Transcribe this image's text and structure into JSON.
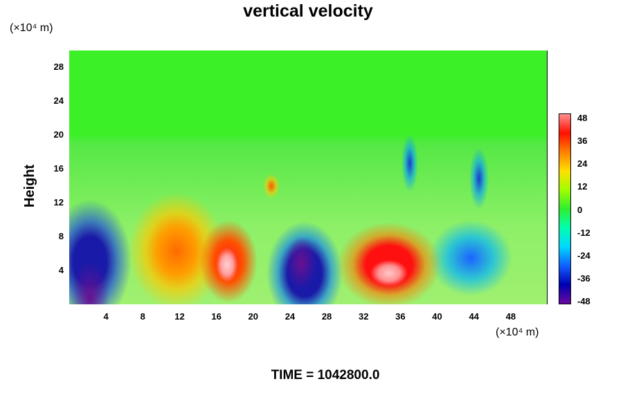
{
  "chart_data": {
    "type": "heatmap",
    "title": "vertical velocity",
    "xlabel": "",
    "ylabel": "Height",
    "x_unit": "(×10⁴ m)",
    "y_unit": "(×10⁴ m)",
    "x_ticks": [
      "4",
      "8",
      "12",
      "16",
      "20",
      "24",
      "28",
      "32",
      "36",
      "40",
      "44",
      "48"
    ],
    "y_ticks": [
      "4",
      "8",
      "12",
      "16",
      "20",
      "24",
      "28"
    ],
    "xlim": [
      0,
      52
    ],
    "ylim": [
      0,
      30
    ],
    "colorbar": {
      "labels": [
        "48",
        "36",
        "24",
        "12",
        "0",
        "-12",
        "-24",
        "-36",
        "-48"
      ],
      "range": [
        -48,
        48
      ],
      "colors": [
        "#6a0aa0",
        "#0000b0",
        "#1060ff",
        "#00d8ff",
        "#00ffb0",
        "#30ee30",
        "#a0ff00",
        "#ffe000",
        "#ff8000",
        "#ff1000",
        "#ff9090"
      ]
    },
    "features": [
      {
        "x": 2,
        "y": 5,
        "sign": "negative"
      },
      {
        "x": 10,
        "y": 7,
        "sign": "positive"
      },
      {
        "x": 16.5,
        "y": 4,
        "sign": "positive"
      },
      {
        "x": 25,
        "y": 4,
        "sign": "negative"
      },
      {
        "x": 34,
        "y": 3.5,
        "sign": "positive"
      },
      {
        "x": 42,
        "y": 5,
        "sign": "negative"
      },
      {
        "x": 22,
        "y": 14,
        "sign": "positive"
      }
    ],
    "time_label": "TIME = 1042800.0"
  }
}
